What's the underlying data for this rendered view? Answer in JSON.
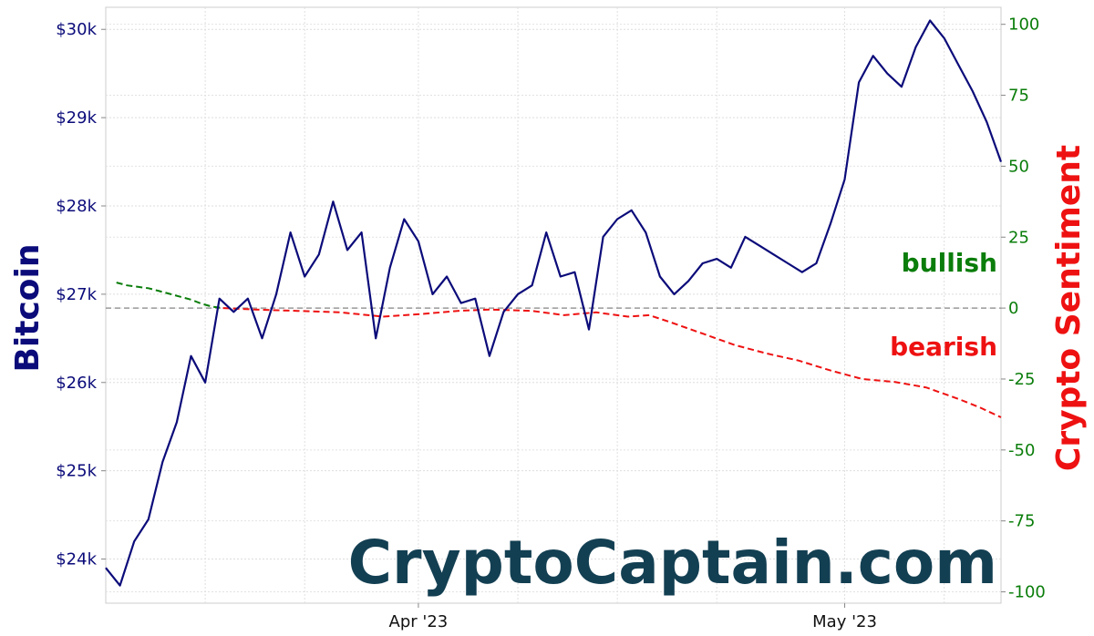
{
  "chart_data": {
    "type": "line",
    "left_axis": {
      "label": "Bitcoin",
      "ylim": [
        23500,
        30250
      ],
      "ticks": [
        24000,
        25000,
        26000,
        27000,
        28000,
        29000,
        30000
      ],
      "tick_labels": [
        "$24k",
        "$25k",
        "$26k",
        "$27k",
        "$28k",
        "$29k",
        "$30k"
      ]
    },
    "right_axis": {
      "label": "Crypto Sentiment",
      "ylim": [
        -104,
        106
      ],
      "ticks": [
        -100,
        -75,
        -50,
        -25,
        0,
        25,
        50,
        75,
        100
      ],
      "tick_labels": [
        "-100",
        "-75",
        "-50",
        "-25",
        "0",
        "25",
        "50",
        "75",
        "100"
      ]
    },
    "x_axis": {
      "start": "2023-03-11",
      "end": "2023-05-13",
      "tick_labels": [
        "Apr '23",
        "May '23"
      ],
      "tick_dates": [
        "2023-04-01",
        "2023-05-01"
      ]
    },
    "grid": true,
    "series": [
      {
        "axis": "left",
        "color": "#0b0b7a",
        "style": "solid",
        "points": [
          [
            "2023-03-11",
            23900
          ],
          [
            "2023-03-12",
            23700
          ],
          [
            "2023-03-12",
            24200
          ],
          [
            "2023-03-13",
            24450
          ],
          [
            "2023-03-13",
            25100
          ],
          [
            "2023-03-14",
            25550
          ],
          [
            "2023-03-14",
            26300
          ],
          [
            "2023-03-15",
            26000
          ],
          [
            "2023-03-16",
            26950
          ],
          [
            "2023-03-17",
            26800
          ],
          [
            "2023-03-18",
            26950
          ],
          [
            "2023-03-19",
            26500
          ],
          [
            "2023-03-20",
            27000
          ],
          [
            "2023-03-21",
            27700
          ],
          [
            "2023-03-22",
            27200
          ],
          [
            "2023-03-23",
            27450
          ],
          [
            "2023-03-24",
            28050
          ],
          [
            "2023-03-25",
            27500
          ],
          [
            "2023-03-26",
            27700
          ],
          [
            "2023-03-27",
            26500
          ],
          [
            "2023-03-28",
            27300
          ],
          [
            "2023-03-29",
            27850
          ],
          [
            "2023-03-30",
            27600
          ],
          [
            "2023-03-31",
            27000
          ],
          [
            "2023-04-01",
            27200
          ],
          [
            "2023-04-02",
            26900
          ],
          [
            "2023-04-03",
            26950
          ],
          [
            "2023-04-04",
            26300
          ],
          [
            "2023-04-05",
            26800
          ],
          [
            "2023-04-06",
            27000
          ],
          [
            "2023-04-07",
            27100
          ],
          [
            "2023-04-08",
            27700
          ],
          [
            "2023-04-09",
            27200
          ],
          [
            "2023-04-10",
            27250
          ],
          [
            "2023-04-11",
            26600
          ],
          [
            "2023-04-12",
            27650
          ],
          [
            "2023-04-13",
            27850
          ],
          [
            "2023-04-14",
            27950
          ],
          [
            "2023-04-15",
            27700
          ],
          [
            "2023-04-16",
            27200
          ],
          [
            "2023-04-17",
            27000
          ],
          [
            "2023-04-18",
            27150
          ],
          [
            "2023-04-19",
            27350
          ],
          [
            "2023-04-20",
            27400
          ],
          [
            "2023-04-21",
            27300
          ],
          [
            "2023-04-22",
            27650
          ],
          [
            "2023-04-23",
            27550
          ],
          [
            "2023-04-24",
            27450
          ],
          [
            "2023-04-25",
            27350
          ],
          [
            "2023-04-26",
            27250
          ],
          [
            "2023-04-27",
            27350
          ],
          [
            "2023-04-28",
            27800
          ],
          [
            "2023-04-29",
            28300
          ],
          [
            "2023-04-30",
            29400
          ],
          [
            "2023-05-01",
            29700
          ],
          [
            "2023-05-02",
            29500
          ],
          [
            "2023-05-03",
            29350
          ],
          [
            "2023-05-04",
            29800
          ],
          [
            "2023-05-05",
            30100
          ],
          [
            "2023-05-06",
            29900
          ],
          [
            "2023-05-07",
            29600
          ],
          [
            "2023-05-08",
            29300
          ],
          [
            "2023-05-09",
            28950
          ],
          [
            "2023-05-10",
            28500
          ]
        ]
      }
    ],
    "sentiment_series": [
      {
        "axis": "right",
        "name": "bullish",
        "color": "#0a7d0a",
        "style": "dashed",
        "points": [
          [
            "2023-03-11",
            9
          ],
          [
            "2023-03-12",
            8
          ],
          [
            "2023-03-13",
            7.5
          ],
          [
            "2023-03-14",
            7
          ],
          [
            "2023-03-15",
            6
          ],
          [
            "2023-03-16",
            5
          ],
          [
            "2023-03-17",
            4
          ],
          [
            "2023-03-18",
            3
          ],
          [
            "2023-03-19",
            1.5
          ],
          [
            "2023-03-20",
            0.5
          ],
          [
            "2023-03-21",
            0
          ]
        ]
      },
      {
        "axis": "right",
        "name": "bearish",
        "color": "#ee1111",
        "style": "dashed",
        "points": [
          [
            "2023-03-21",
            0
          ],
          [
            "2023-03-24",
            -0.5
          ],
          [
            "2023-03-28",
            -1
          ],
          [
            "2023-04-01",
            -1.5
          ],
          [
            "2023-04-05",
            -3
          ],
          [
            "2023-04-09",
            -2
          ],
          [
            "2023-04-12",
            -1
          ],
          [
            "2023-04-15",
            -0.5
          ],
          [
            "2023-04-19",
            -1
          ],
          [
            "2023-04-22",
            -2.5
          ],
          [
            "2023-04-25",
            -1.5
          ],
          [
            "2023-04-28",
            -3
          ],
          [
            "2023-04-30",
            -2.5
          ],
          [
            "2023-05-02",
            -5
          ],
          [
            "2023-05-05",
            -9
          ],
          [
            "2023-05-08",
            -13
          ],
          [
            "2023-05-11",
            -16
          ],
          [
            "2023-05-14",
            -18.5
          ],
          [
            "2023-05-17",
            -22
          ],
          [
            "2023-05-20",
            -25
          ],
          [
            "2023-05-23",
            -26
          ],
          [
            "2023-05-26",
            -28
          ],
          [
            "2023-05-29",
            -32
          ],
          [
            "2023-05-31",
            -35
          ],
          [
            "2023-06-02",
            -38.5
          ]
        ]
      }
    ],
    "btc_full": [
      [
        "2023-03-10",
        23900
      ],
      [
        "2023-03-10",
        23600
      ],
      [
        "2023-03-11",
        24100
      ],
      [
        "2023-03-12",
        24300
      ],
      [
        "2023-03-12",
        24800
      ],
      [
        "2023-03-13",
        25300
      ],
      [
        "2023-03-13",
        25900
      ],
      [
        "2023-03-14",
        26400
      ],
      [
        "2023-03-14",
        25800
      ],
      [
        "2023-03-15",
        26500
      ],
      [
        "2023-03-15",
        27000
      ],
      [
        "2023-03-16",
        26700
      ],
      [
        "2023-03-16",
        27000
      ],
      [
        "2023-03-17",
        26400
      ],
      [
        "2023-03-17",
        26700
      ],
      [
        "2023-03-18",
        27200
      ],
      [
        "2023-03-18",
        27600
      ],
      [
        "2023-03-19",
        27300
      ],
      [
        "2023-03-19",
        27500
      ],
      [
        "2023-03-20",
        27000
      ],
      [
        "2023-03-20",
        27700
      ],
      [
        "2023-03-21",
        27400
      ],
      [
        "2023-03-21",
        27900
      ],
      [
        "2023-03-22",
        27300
      ],
      [
        "2023-03-22",
        27700
      ],
      [
        "2023-03-23",
        27500
      ],
      [
        "2023-03-23",
        28050
      ],
      [
        "2023-03-24",
        27600
      ],
      [
        "2023-03-24",
        27200
      ],
      [
        "2023-03-25",
        26400
      ],
      [
        "2023-03-25",
        27700
      ],
      [
        "2023-03-26",
        27400
      ],
      [
        "2023-03-26",
        27800
      ],
      [
        "2023-03-27",
        27600
      ],
      [
        "2023-03-27",
        27000
      ],
      [
        "2023-03-28",
        26900
      ],
      [
        "2023-03-28",
        27300
      ],
      [
        "2023-03-29",
        27600
      ],
      [
        "2023-03-29",
        27200
      ],
      [
        "2023-03-30",
        27000
      ],
      [
        "2023-03-30",
        27150
      ],
      [
        "2023-03-31",
        26800
      ],
      [
        "2023-03-31",
        27100
      ],
      [
        "2023-04-01",
        26400
      ],
      [
        "2023-04-01",
        26300
      ],
      [
        "2023-04-02",
        26600
      ],
      [
        "2023-04-02",
        27100
      ],
      [
        "2023-04-03",
        27850
      ],
      [
        "2023-04-04",
        27850
      ],
      [
        "2023-04-04",
        27850
      ],
      [
        "2023-04-05",
        27600
      ],
      [
        "2023-04-05",
        27900
      ],
      [
        "2023-04-06",
        27700
      ],
      [
        "2023-04-06",
        27300
      ],
      [
        "2023-04-07",
        27600
      ],
      [
        "2023-04-07",
        27800
      ],
      [
        "2023-04-08",
        27550
      ],
      [
        "2023-04-08",
        27700
      ],
      [
        "2023-04-09",
        27400
      ],
      [
        "2023-04-09",
        27700
      ]
    ]
  },
  "annotations": {
    "bullish": "bullish",
    "bearish": "bearish"
  },
  "watermark": "CryptoCaptain.com",
  "colors": {
    "btc": "#0b0b7a",
    "bullish": "#0a7d0a",
    "bearish": "#ee1111",
    "watermark": "#133f52",
    "zero_line": "#999999"
  }
}
